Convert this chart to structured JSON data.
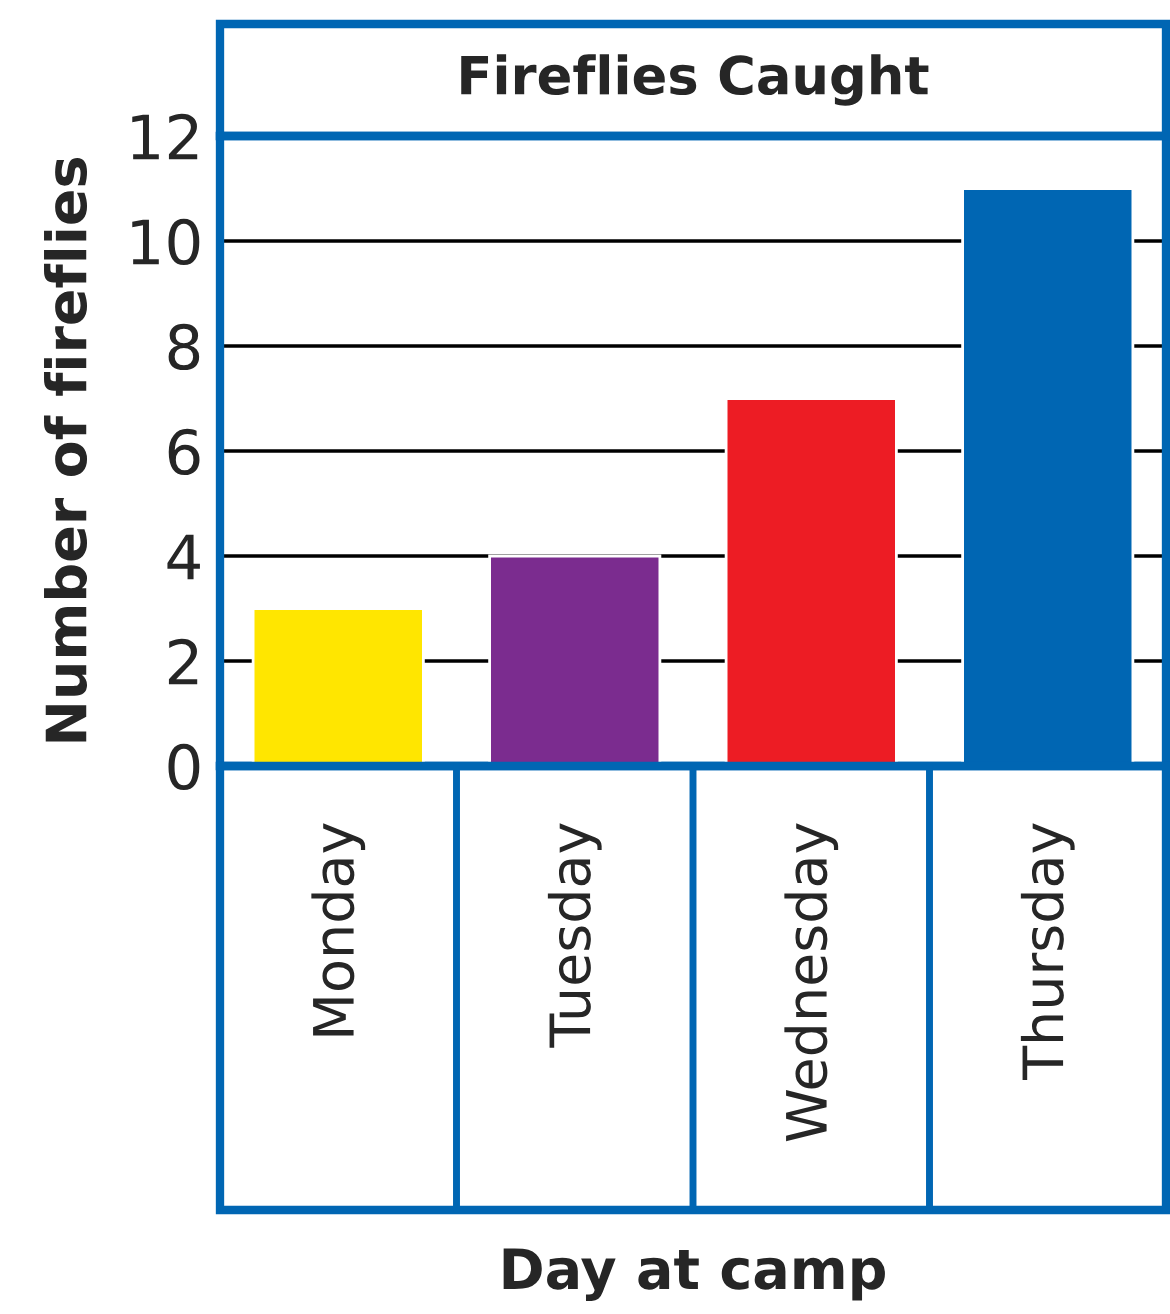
{
  "chart_data": {
    "type": "bar",
    "title": "Fireflies Caught",
    "xlabel": "Day at camp",
    "ylabel": "Number of fireflies",
    "categories": [
      "Monday",
      "Tuesday",
      "Wednesday",
      "Thursday"
    ],
    "values": [
      3,
      4,
      7,
      11
    ],
    "colors": [
      "#ffe600",
      "#7b2c8f",
      "#ed1c24",
      "#0066b3"
    ],
    "ylim": [
      0,
      12
    ],
    "yticks": [
      0,
      2,
      4,
      6,
      8,
      10,
      12
    ],
    "grid": "y",
    "legend": false
  }
}
